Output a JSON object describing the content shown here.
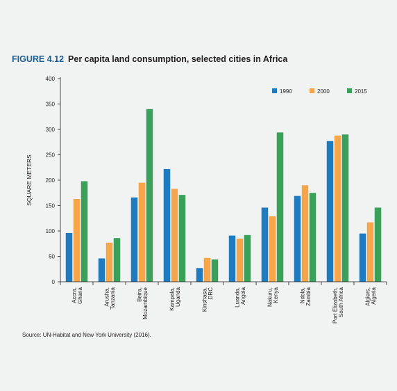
{
  "figure": {
    "label": "FIGURE 4.12",
    "title": "Per capita land consumption, selected cities in Africa",
    "source": "Source: UN-Habitat and New York University (2016)."
  },
  "chart_data": {
    "type": "bar",
    "title": "Per capita land consumption, selected cities in Africa",
    "ylabel": "SQUARE METERS",
    "xlabel": "",
    "ylim": [
      0,
      400
    ],
    "yticks": [
      0,
      50,
      100,
      150,
      200,
      250,
      300,
      350,
      400
    ],
    "grid": false,
    "legend_position": "top-right",
    "categories": [
      [
        "Accra,",
        "Ghana"
      ],
      [
        "Arusha,",
        "Tanzania"
      ],
      [
        "Beira,",
        "Mozambique"
      ],
      [
        "Kampala,",
        "Uganda"
      ],
      [
        "Kinshasa,",
        "DRC"
      ],
      [
        "Luanda,",
        "Angola"
      ],
      [
        "Nakuru,",
        "Kenya"
      ],
      [
        "Ndola,",
        "Zambia"
      ],
      [
        "Port Elizabeth,",
        "South Africa"
      ],
      [
        "Algiers,",
        "Algeria"
      ]
    ],
    "series": [
      {
        "name": "1990",
        "color": "#1f7bbf",
        "values": [
          96,
          46,
          166,
          222,
          27,
          91,
          146,
          169,
          277,
          95
        ]
      },
      {
        "name": "2000",
        "color": "#f5a54a",
        "values": [
          163,
          77,
          195,
          183,
          47,
          85,
          129,
          190,
          288,
          117
        ]
      },
      {
        "name": "2015",
        "color": "#3aa05a",
        "values": [
          198,
          86,
          340,
          171,
          44,
          92,
          294,
          175,
          290,
          146
        ]
      }
    ]
  }
}
